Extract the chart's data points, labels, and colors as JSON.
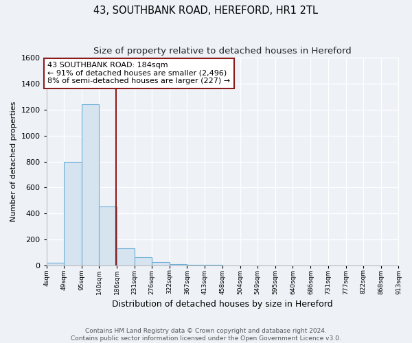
{
  "title": "43, SOUTHBANK ROAD, HEREFORD, HR1 2TL",
  "subtitle": "Size of property relative to detached houses in Hereford",
  "xlabel": "Distribution of detached houses by size in Hereford",
  "ylabel": "Number of detached properties",
  "bin_edges": [
    4,
    49,
    95,
    140,
    186,
    231,
    276,
    322,
    367,
    413,
    458,
    504,
    549,
    595,
    640,
    686,
    731,
    777,
    822,
    868,
    913
  ],
  "bin_counts": [
    20,
    800,
    1240,
    455,
    130,
    60,
    25,
    10,
    5,
    5,
    0,
    0,
    0,
    0,
    0,
    0,
    0,
    0,
    0,
    0
  ],
  "bar_facecolor": "#d6e4f0",
  "bar_edgecolor": "#6aaed6",
  "vline_color": "#8b1a1a",
  "vline_x": 184,
  "annotation_line1": "43 SOUTHBANK ROAD: 184sqm",
  "annotation_line2": "← 91% of detached houses are smaller (2,496)",
  "annotation_line3": "8% of semi-detached houses are larger (227) →",
  "annotation_box_facecolor": "#ffffff",
  "annotation_box_edgecolor": "#8b1a1a",
  "ylim": [
    0,
    1600
  ],
  "yticks": [
    0,
    200,
    400,
    600,
    800,
    1000,
    1200,
    1400,
    1600
  ],
  "tick_labels": [
    "4sqm",
    "49sqm",
    "95sqm",
    "140sqm",
    "186sqm",
    "231sqm",
    "276sqm",
    "322sqm",
    "367sqm",
    "413sqm",
    "458sqm",
    "504sqm",
    "549sqm",
    "595sqm",
    "640sqm",
    "686sqm",
    "731sqm",
    "777sqm",
    "822sqm",
    "868sqm",
    "913sqm"
  ],
  "footer_line1": "Contains HM Land Registry data © Crown copyright and database right 2024.",
  "footer_line2": "Contains public sector information licensed under the Open Government Licence v3.0.",
  "bg_color": "#eef2f7",
  "plot_bg_color": "#eef2f7",
  "title_fontsize": 10.5,
  "subtitle_fontsize": 9.5,
  "ylabel_fontsize": 8,
  "xlabel_fontsize": 9,
  "annotation_fontsize": 8,
  "footer_fontsize": 6.5,
  "ytick_fontsize": 8,
  "xtick_fontsize": 6.5
}
